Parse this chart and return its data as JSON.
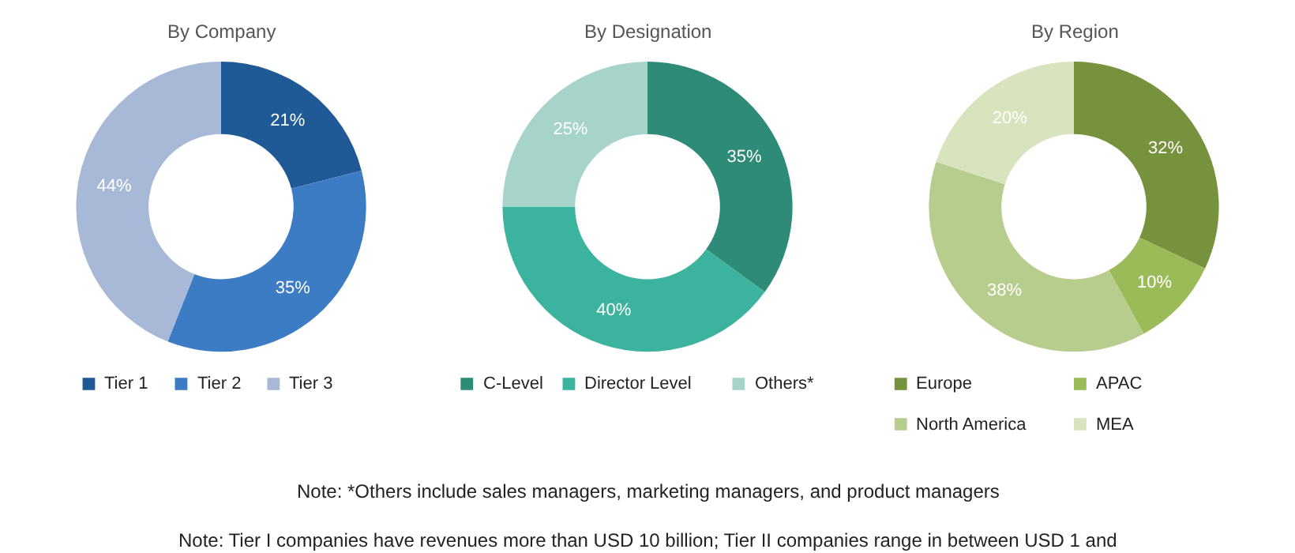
{
  "chart_data": [
    {
      "type": "donut",
      "title": "By Company",
      "categories": [
        "Tier 1",
        "Tier 2",
        "Tier 3"
      ],
      "values": [
        21,
        35,
        44
      ],
      "value_labels": [
        "21%",
        "35%",
        "44%"
      ],
      "colors": [
        "#1f5a96",
        "#3b7cc4",
        "#a8b9d8"
      ],
      "legend": "bottom"
    },
    {
      "type": "donut",
      "title": "By Designation",
      "categories": [
        "C-Level",
        "Director Level",
        "Others*"
      ],
      "values": [
        35,
        40,
        25
      ],
      "value_labels": [
        "35%",
        "40%",
        "25%"
      ],
      "colors": [
        "#2e8b78",
        "#3cb39e",
        "#a6d4ca"
      ],
      "legend": "bottom",
      "annotations": [
        "Note: *Others include sales managers, marketing managers, and product managers",
        "Note: Tier I companies have revenues more than USD 10 billion; Tier II companies range in between USD 1 and"
      ]
    },
    {
      "type": "donut",
      "title": "By Region",
      "categories": [
        "Europe",
        "APAC",
        "North America",
        "MEA"
      ],
      "values": [
        32,
        10,
        38,
        20
      ],
      "value_labels": [
        "32%",
        "10%",
        "38%",
        "20%"
      ],
      "colors": [
        "#76923c",
        "#9bbb59",
        "#b6cd8e",
        "#d7e4bd"
      ],
      "legend": "bottom"
    }
  ]
}
